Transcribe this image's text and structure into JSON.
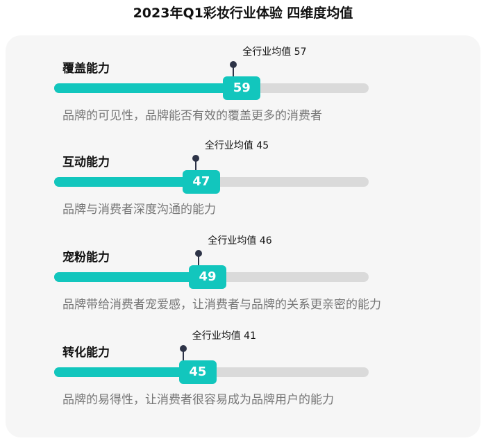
{
  "title": "2023年Q1彩妆行业体验 四维度均值",
  "avg_prefix": "全行业均值",
  "chart_data": {
    "type": "bar",
    "title": "2023年Q1彩妆行业体验 四维度均值",
    "xlim": [
      0,
      100
    ],
    "colors": {
      "fill": "#12c6bd",
      "track": "#dadada",
      "marker": "#2d3347"
    },
    "categories": [
      "覆盖能力",
      "互动能力",
      "宠粉能力",
      "转化能力"
    ],
    "values": [
      59,
      47,
      49,
      45
    ],
    "industry_avg": [
      57,
      45,
      46,
      41
    ],
    "descriptions": [
      "品牌的可见性，品牌能否有效的覆盖更多的消费者",
      "品牌与消费者深度沟通的能力",
      "品牌带给消费者宠爱感，让消费者与品牌的关系更亲密的能力",
      "品牌的易得性，让消费者很容易成为品牌用户的能力"
    ]
  }
}
